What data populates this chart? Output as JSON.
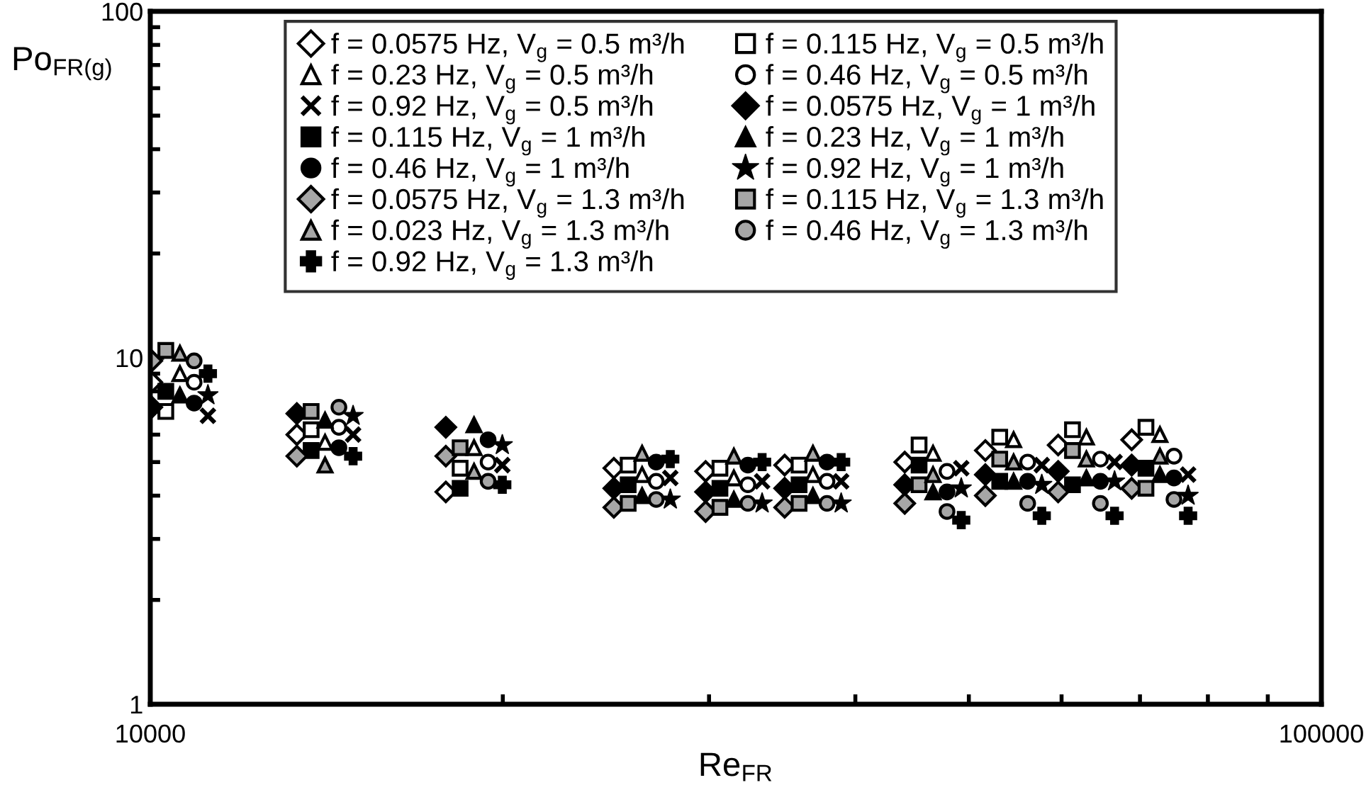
{
  "chart_data": {
    "type": "scatter",
    "xlabel": "Re$_{FR}$",
    "ylabel": "Po$_{FR(g)}$",
    "log": "xy",
    "xlim": [
      10000,
      100000
    ],
    "ylim": [
      1,
      100
    ],
    "xticks": [
      10000,
      100000
    ],
    "yticks": [
      1,
      10,
      100
    ],
    "grid": false,
    "legend": "top",
    "series": [
      {
        "name": "f = 0.0575 Hz, V$_{g}$ = 0.5 m³/h",
        "marker": "diamond",
        "color": "#ffffff",
        "x": [
          10030,
          13340,
          17880,
          24880,
          29800,
          34810,
          44080,
          51650,
          59600,
          68870
        ],
        "values": [
          8.5,
          6.0,
          4.1,
          4.8,
          4.7,
          4.9,
          5.0,
          5.4,
          5.6,
          5.8
        ]
      },
      {
        "name": "f = 0.115 Hz, V$_{g}$ = 0.5 m³/h",
        "marker": "square",
        "color": "#ffffff",
        "x": [
          10310,
          13720,
          18390,
          25590,
          30650,
          35810,
          45340,
          53130,
          61300,
          70830
        ],
        "values": [
          7.0,
          6.2,
          4.8,
          4.9,
          4.8,
          4.9,
          5.6,
          5.9,
          6.2,
          6.3
        ]
      },
      {
        "name": "f = 0.23 Hz, V$_{g}$ = 0.5 m³/h",
        "marker": "triangle",
        "color": "#ffffff",
        "x": [
          10600,
          14100,
          18900,
          26300,
          31500,
          36800,
          46600,
          54600,
          63000,
          72800
        ],
        "values": [
          9.0,
          5.7,
          5.5,
          4.6,
          4.5,
          4.6,
          5.3,
          5.8,
          5.9,
          6.0
        ]
      },
      {
        "name": "f = 0.46 Hz, V$_{g}$ = 0.5 m³/h",
        "marker": "circle",
        "color": "#ffffff",
        "x": [
          10900,
          14490,
          19430,
          27040,
          32380,
          37830,
          47900,
          56130,
          64760,
          74840
        ],
        "values": [
          8.5,
          6.3,
          5.0,
          4.4,
          4.3,
          4.4,
          4.7,
          5.0,
          5.1,
          5.2
        ]
      },
      {
        "name": "f = 0.92 Hz, V$_{g}$ = 0.5 m³/h",
        "marker": "cross",
        "color": "#000000",
        "x": [
          11200,
          14900,
          19980,
          27800,
          33300,
          38900,
          49260,
          57710,
          66590,
          76950
        ],
        "values": [
          6.8,
          6.0,
          4.9,
          4.5,
          4.4,
          4.4,
          4.8,
          4.9,
          5.0,
          4.6
        ]
      },
      {
        "name": "f = 0.0575 Hz, V$_{g}$ = 1 m³/h",
        "marker": "diamond",
        "color": "#000000",
        "x": [
          10030,
          13340,
          17880,
          24880,
          29800,
          34810,
          44080,
          51650,
          59600,
          68870
        ],
        "values": [
          7.2,
          6.9,
          6.3,
          4.2,
          4.1,
          4.2,
          4.3,
          4.6,
          4.7,
          4.9
        ]
      },
      {
        "name": "f = 0.115 Hz, V$_{g}$ = 1 m³/h",
        "marker": "square",
        "color": "#000000",
        "x": [
          10310,
          13720,
          18390,
          25590,
          30650,
          35810,
          45340,
          53130,
          61300,
          70830
        ],
        "values": [
          8.0,
          5.4,
          4.2,
          4.3,
          4.2,
          4.3,
          4.9,
          4.4,
          4.3,
          4.8
        ]
      },
      {
        "name": "f = 0.23 Hz, V$_{g}$ = 1 m³/h",
        "marker": "triangle",
        "color": "#000000",
        "x": [
          10600,
          14100,
          18900,
          26300,
          31500,
          36800,
          46600,
          54600,
          63000,
          72800
        ],
        "values": [
          7.8,
          6.6,
          6.4,
          4.0,
          3.9,
          4.0,
          4.1,
          4.4,
          4.5,
          4.6
        ]
      },
      {
        "name": "f = 0.46 Hz, V$_{g}$ = 1 m³/h",
        "marker": "circle",
        "color": "#000000",
        "x": [
          10900,
          14490,
          19430,
          27040,
          32380,
          37830,
          47900,
          56130,
          64760,
          74840
        ],
        "values": [
          7.4,
          5.5,
          5.8,
          5.0,
          4.9,
          5.0,
          4.1,
          4.4,
          4.4,
          4.5
        ]
      },
      {
        "name": "f = 0.92 Hz, V$_{g}$ = 1 m³/h",
        "marker": "star",
        "color": "#000000",
        "x": [
          11200,
          14900,
          19980,
          27800,
          33300,
          38900,
          49260,
          57710,
          66590,
          76950
        ],
        "values": [
          7.8,
          6.8,
          5.6,
          3.9,
          3.8,
          3.8,
          4.2,
          4.3,
          4.4,
          4.0
        ]
      },
      {
        "name": "f = 0.0575 Hz, V$_{g}$ = 1.3 m³/h",
        "marker": "diamond",
        "color": "#a6a6a6",
        "x": [
          10030,
          13340,
          17880,
          24880,
          29800,
          34810,
          44080,
          51650,
          59600,
          68870
        ],
        "values": [
          9.8,
          5.2,
          5.2,
          3.7,
          3.6,
          3.7,
          3.8,
          4.0,
          4.1,
          4.2
        ]
      },
      {
        "name": "f = 0.115 Hz, V$_{g}$ = 1.3 m³/h",
        "marker": "square",
        "color": "#a6a6a6",
        "x": [
          10310,
          13720,
          18390,
          25590,
          30650,
          35810,
          45340,
          53130,
          61300,
          70830
        ],
        "values": [
          10.5,
          7.0,
          5.5,
          3.8,
          3.7,
          3.8,
          4.3,
          5.1,
          5.4,
          4.2
        ]
      },
      {
        "name": "f = 0.023 Hz, V$_{g}$ = 1.3 m³/h",
        "marker": "triangle",
        "color": "#a6a6a6",
        "x": [
          10600,
          14100,
          18900,
          26300,
          31500,
          36800,
          46600,
          54600,
          63000,
          72800
        ],
        "values": [
          10.3,
          4.9,
          4.7,
          5.3,
          5.2,
          5.3,
          4.6,
          5.0,
          5.1,
          5.2
        ]
      },
      {
        "name": "f = 0.46 Hz, V$_{g}$ = 1.3 m³/h",
        "marker": "circle",
        "color": "#a6a6a6",
        "x": [
          10900,
          14490,
          19430,
          27040,
          32380,
          37830,
          47900,
          56130,
          64760,
          74840
        ],
        "values": [
          9.8,
          7.2,
          4.4,
          3.9,
          3.8,
          3.8,
          3.6,
          3.8,
          3.8,
          3.9
        ]
      },
      {
        "name": "f = 0.92 Hz, V$_{g}$ = 1.3 m³/h",
        "marker": "plus",
        "color": "#000000",
        "x": [
          11200,
          14900,
          19980,
          27800,
          33300,
          38900,
          49260,
          57710,
          66590,
          76950
        ],
        "values": [
          9.0,
          5.2,
          4.3,
          5.1,
          5.0,
          5.0,
          3.4,
          3.5,
          3.5,
          3.5
        ]
      }
    ]
  }
}
